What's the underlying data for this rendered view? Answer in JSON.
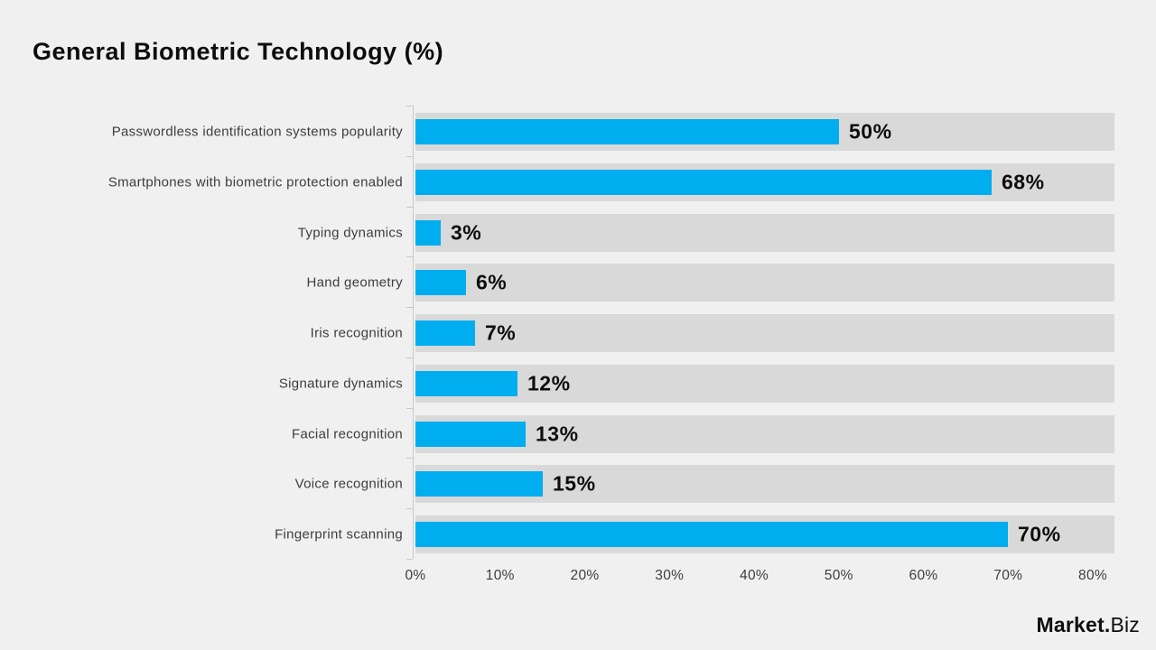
{
  "page": {
    "background": "#f0f0f0"
  },
  "title": "General Biometric Technology (%)",
  "chart_data": {
    "type": "bar",
    "orientation": "horizontal",
    "title": "General Biometric Technology (%)",
    "categories": [
      "Passwordless identification systems popularity",
      "Smartphones with biometric protection enabled",
      "Typing dynamics",
      "Hand geometry",
      "Iris recognition",
      "Signature dynamics",
      "Facial recognition",
      "Voice recognition",
      "Fingerprint scanning"
    ],
    "values": [
      50,
      68,
      3,
      6,
      7,
      12,
      13,
      15,
      70
    ],
    "value_labels": [
      "50%",
      "68%",
      "3%",
      "6%",
      "7%",
      "12%",
      "13%",
      "15%",
      "70%"
    ],
    "x_ticks": [
      "0%",
      "10%",
      "20%",
      "30%",
      "40%",
      "50%",
      "60%",
      "70%",
      "80%"
    ],
    "xlim": [
      0,
      80
    ],
    "xlabel": "",
    "ylabel": "",
    "grid": false,
    "legend": false,
    "bar_color": "#00adee",
    "track_color": "#d9d9d9",
    "axis_color": "#c8c8c8",
    "value_label_color": "#0d0d0d",
    "category_label_color": "#3d3d3d"
  },
  "branding": {
    "logo_bold": "Market.",
    "logo_light": "Biz",
    "logo_icon": "bar-chart-icon"
  }
}
